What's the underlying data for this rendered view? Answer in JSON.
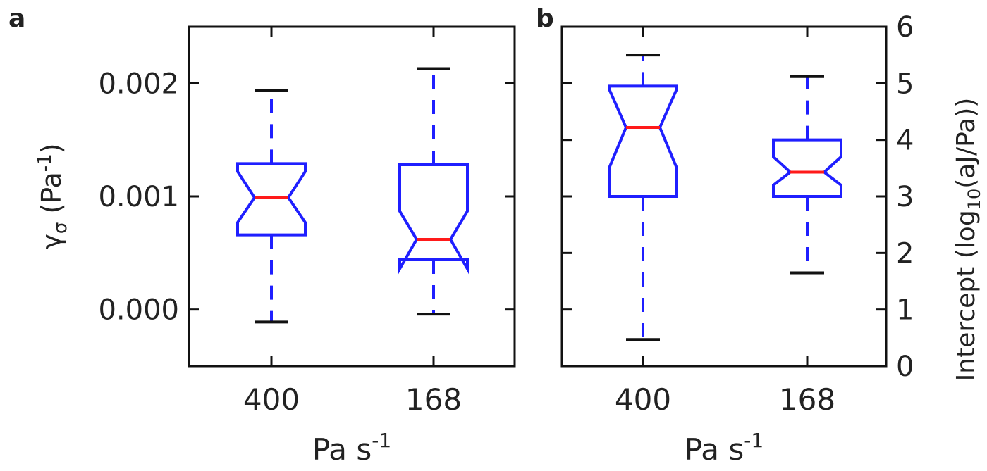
{
  "chart_data": [
    {
      "panel_label": "a",
      "type": "box",
      "notched": true,
      "categories": [
        "400",
        "168"
      ],
      "xlabel_base": "Pa s",
      "xlabel_sup": "-1",
      "ylabel_greek": "γ",
      "ylabel_sub": "σ",
      "ylabel_unit_open": " (Pa",
      "ylabel_unit_sup": "-1",
      "ylabel_unit_close": ")",
      "axis_side": "left",
      "ylim": [
        -0.0005,
        0.0025
      ],
      "yticks": [
        0.0,
        0.001,
        0.002
      ],
      "ytick_labels": [
        "0.000",
        "0.001",
        "0.002"
      ],
      "boxes": [
        {
          "category": "400",
          "whisker_low": -0.00011,
          "q1": 0.00066,
          "median": 0.00099,
          "q3": 0.00129,
          "whisker_high": 0.00194,
          "notch_low": 0.00077,
          "notch_high": 0.00122
        },
        {
          "category": "168",
          "whisker_low": -4e-05,
          "q1": 0.00044,
          "median": 0.00062,
          "q3": 0.00128,
          "whisker_high": 0.00213,
          "notch_low": 0.00036,
          "notch_high": 0.00087
        }
      ]
    },
    {
      "panel_label": "b",
      "type": "box",
      "notched": true,
      "categories": [
        "400",
        "168"
      ],
      "xlabel_base": "Pa s",
      "xlabel_sup": "-1",
      "ylabel_pre": "Intercept (log",
      "ylabel_sub": "10",
      "ylabel_post": "(aJ/Pa))",
      "axis_side": "right",
      "ylim": [
        0,
        6
      ],
      "yticks": [
        0,
        1,
        2,
        3,
        4,
        5,
        6
      ],
      "ytick_labels": [
        "0",
        "1",
        "2",
        "3",
        "4",
        "5",
        "6"
      ],
      "boxes": [
        {
          "category": "400",
          "whisker_low": 0.47,
          "q1": 3.0,
          "median": 4.22,
          "q3": 4.95,
          "whisker_high": 5.5,
          "notch_low": 3.5,
          "notch_high": 4.9
        },
        {
          "category": "168",
          "whisker_low": 1.65,
          "q1": 3.0,
          "median": 3.43,
          "q3": 4.0,
          "whisker_high": 5.12,
          "notch_low": 3.2,
          "notch_high": 3.7
        }
      ]
    }
  ],
  "colors": {
    "box": "#1f1fff",
    "median": "#ff1a1a",
    "cap": "#111111",
    "axis": "#111111",
    "text": "#222222"
  }
}
